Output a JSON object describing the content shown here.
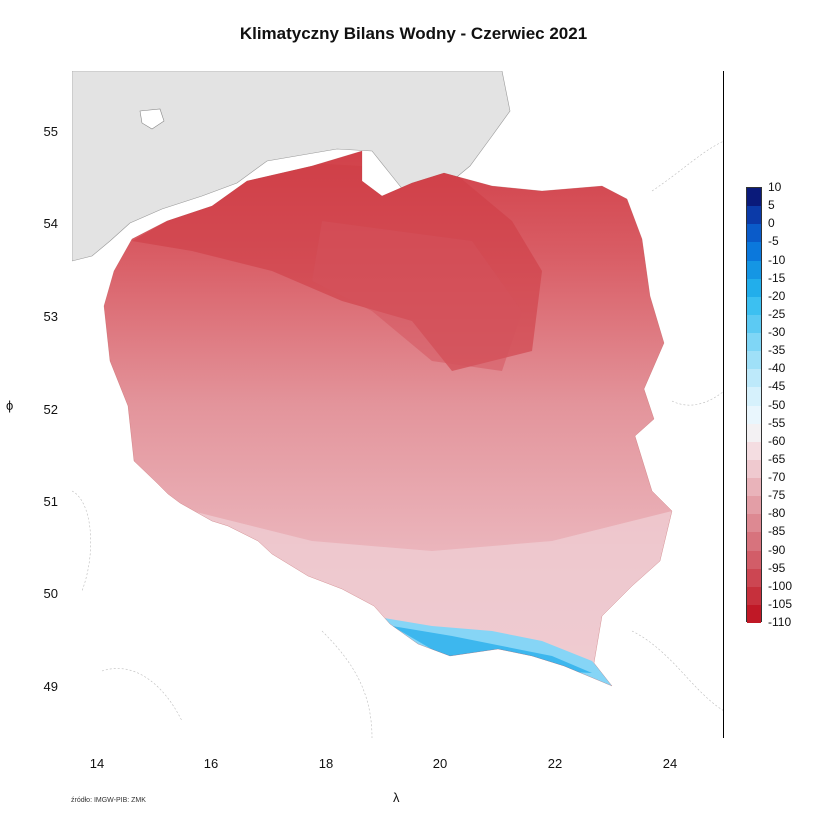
{
  "title": "Klimatyczny Bilans Wodny - Czerwiec 2021",
  "xlabel": "λ",
  "ylabel": "ϕ",
  "source": "źródło: IMGW-PIB: ZMK",
  "x_ticks": [
    "14",
    "16",
    "18",
    "20",
    "22",
    "24"
  ],
  "y_ticks": [
    "55",
    "54",
    "53",
    "52",
    "51",
    "50",
    "49"
  ],
  "legend": {
    "labels": [
      "10",
      "5",
      "0",
      "-5",
      "-10",
      "-15",
      "-20",
      "-25",
      "-30",
      "-35",
      "-40",
      "-45",
      "-50",
      "-55",
      "-60",
      "-65",
      "-70",
      "-75",
      "-80",
      "-85",
      "-90",
      "-95",
      "-100",
      "-105",
      "-110"
    ],
    "colors": [
      "#0a1a7a",
      "#0b3aa8",
      "#0a5bc9",
      "#0b78dc",
      "#1596e4",
      "#22aeeb",
      "#3cc0f1",
      "#5ccaf3",
      "#7fd6f6",
      "#9fe0f8",
      "#bde9fa",
      "#d6f1fc",
      "#e9f6fd",
      "#f3f1f3",
      "#f4dde1",
      "#efc9cf",
      "#e9b3ba",
      "#e39ea6",
      "#dd8992",
      "#d7737d",
      "#d25d68",
      "#cc4652",
      "#c6303c",
      "#c01826"
    ]
  },
  "colors": {
    "sea": "#e3e3e3",
    "deficit_dark": "#cc2a33",
    "deficit_mid": "#dc7c84",
    "deficit_light": "#ecbcc3",
    "surplus": "#3cb8ee"
  }
}
